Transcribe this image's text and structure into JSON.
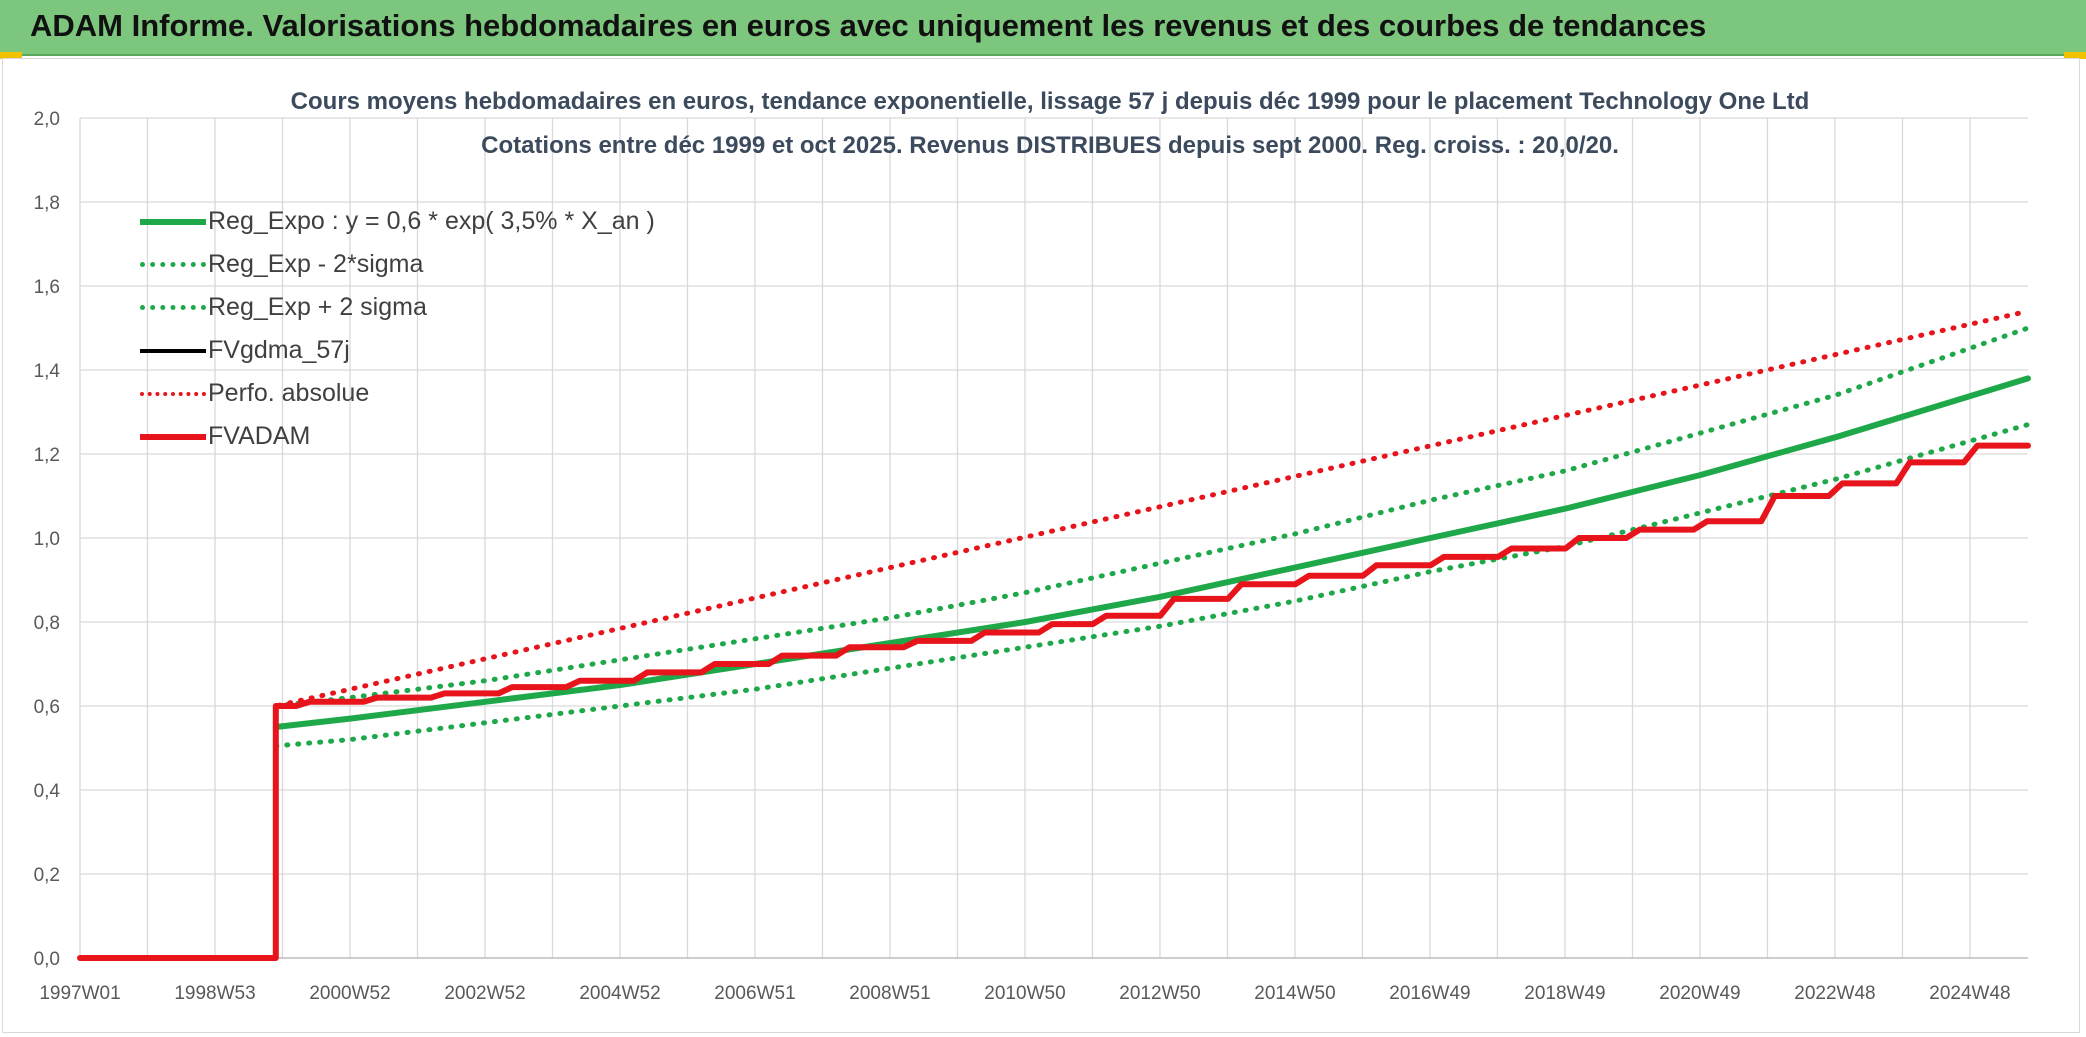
{
  "banner": {
    "title": "ADAM Informe. Valorisations hebdomadaires en euros avec uniquement les revenus et des courbes de tendances",
    "color": "#7dc67d"
  },
  "chart_data": {
    "type": "line",
    "title": "Cours moyens hebdomadaires en euros, tendance exponentielle, lissage 57 j depuis déc 1999 pour le placement Technology One Ltd",
    "subtitle": "Cotations entre déc 1999 et oct 2025. Revenus DISTRIBUES depuis sept 2000. Reg. croiss. : 20,0/20.",
    "xlabel": "",
    "ylabel": "",
    "x_tick_labels": [
      "1997W01",
      "1998W53",
      "2000W52",
      "2002W52",
      "2004W52",
      "2006W51",
      "2008W51",
      "2010W50",
      "2012W50",
      "2014W50",
      "2016W49",
      "2018W49",
      "2020W49",
      "2022W48",
      "2024W48"
    ],
    "y_tick_labels": [
      "0,0",
      "0,2",
      "0,4",
      "0,6",
      "0,8",
      "1,0",
      "1,2",
      "1,4",
      "1,6",
      "1,8",
      "2,0"
    ],
    "xlim": [
      1997.0,
      2025.85
    ],
    "ylim": [
      0,
      2.0
    ],
    "grid": true,
    "legend_position": "top-left",
    "series": [
      {
        "name": "Reg_Expo : y = 0,6 * exp( 3,5% *  X_an )",
        "color": "#1fa84a",
        "style": "solid-thick",
        "x": [
          1999.9,
          2001,
          2003,
          2005,
          2007,
          2009,
          2011,
          2013,
          2015,
          2017,
          2019,
          2021,
          2023,
          2025.85
        ],
        "y": [
          0.55,
          0.57,
          0.61,
          0.65,
          0.7,
          0.75,
          0.8,
          0.86,
          0.93,
          1.0,
          1.07,
          1.15,
          1.24,
          1.38
        ]
      },
      {
        "name": "Reg_Exp - 2*sigma",
        "color": "#1fa84a",
        "style": "dotted",
        "x": [
          1999.9,
          2001,
          2003,
          2005,
          2007,
          2009,
          2011,
          2013,
          2015,
          2017,
          2019,
          2021,
          2023,
          2025.85
        ],
        "y": [
          0.505,
          0.52,
          0.56,
          0.6,
          0.64,
          0.69,
          0.74,
          0.79,
          0.85,
          0.92,
          0.98,
          1.06,
          1.14,
          1.27
        ]
      },
      {
        "name": "Reg_Exp + 2 sigma",
        "color": "#1fa84a",
        "style": "dotted",
        "x": [
          1999.9,
          2001,
          2003,
          2005,
          2007,
          2009,
          2011,
          2013,
          2015,
          2017,
          2019,
          2021,
          2023,
          2025.85
        ],
        "y": [
          0.6,
          0.62,
          0.66,
          0.71,
          0.76,
          0.81,
          0.87,
          0.94,
          1.01,
          1.09,
          1.16,
          1.25,
          1.34,
          1.5
        ]
      },
      {
        "name": "FVgdma_57j",
        "color": "#000000",
        "style": "solid",
        "x": [
          1999.9,
          2000.2,
          2000.4,
          2001.2,
          2001.4,
          2002.2,
          2002.4,
          2003.2,
          2003.4,
          2004.2,
          2004.4,
          2005.2,
          2005.4,
          2006.2,
          2006.4,
          2007.2,
          2007.4,
          2008.2,
          2008.4,
          2009.2,
          2009.4,
          2010.2,
          2010.4,
          2011.2,
          2011.4,
          2012.0,
          2012.2,
          2013.0,
          2013.2,
          2014.0,
          2014.2,
          2015.0,
          2015.2,
          2016.0,
          2016.2,
          2017.0,
          2017.2,
          2018.0,
          2018.2,
          2019.0,
          2019.2,
          2019.9,
          2020.1,
          2020.9,
          2021.1,
          2021.9,
          2022.1,
          2022.9,
          2023.1,
          2023.9,
          2024.1,
          2024.9,
          2025.1,
          2025.85
        ],
        "y": [
          0.6,
          0.6,
          0.61,
          0.61,
          0.62,
          0.62,
          0.63,
          0.63,
          0.645,
          0.645,
          0.66,
          0.66,
          0.68,
          0.68,
          0.7,
          0.7,
          0.72,
          0.72,
          0.74,
          0.74,
          0.755,
          0.755,
          0.775,
          0.775,
          0.795,
          0.795,
          0.815,
          0.815,
          0.855,
          0.855,
          0.89,
          0.89,
          0.91,
          0.91,
          0.935,
          0.935,
          0.955,
          0.955,
          0.975,
          0.975,
          1.0,
          1.0,
          1.02,
          1.02,
          1.04,
          1.04,
          1.1,
          1.1,
          1.13,
          1.13,
          1.18,
          1.18,
          1.22,
          1.22
        ]
      },
      {
        "name": "Perfo. absolue",
        "color": "#e8141b",
        "style": "dotted",
        "x": [
          1997.0,
          1999.9,
          1999.9,
          2025.85
        ],
        "y": [
          0.0,
          0.0,
          0.6,
          1.54
        ]
      },
      {
        "name": "FVADAM",
        "color": "#e8141b",
        "style": "solid-thick",
        "x": [
          1997.0,
          1999.9,
          1999.9,
          2000.2,
          2000.4,
          2001.2,
          2001.4,
          2002.2,
          2002.4,
          2003.2,
          2003.4,
          2004.2,
          2004.4,
          2005.2,
          2005.4,
          2006.2,
          2006.4,
          2007.2,
          2007.4,
          2008.2,
          2008.4,
          2009.2,
          2009.4,
          2010.2,
          2010.4,
          2011.2,
          2011.4,
          2012.0,
          2012.2,
          2013.0,
          2013.2,
          2014.0,
          2014.2,
          2015.0,
          2015.2,
          2016.0,
          2016.2,
          2017.0,
          2017.2,
          2018.0,
          2018.2,
          2019.0,
          2019.2,
          2019.9,
          2020.1,
          2020.9,
          2021.1,
          2021.9,
          2022.1,
          2022.9,
          2023.1,
          2023.9,
          2024.1,
          2024.9,
          2025.1,
          2025.85
        ],
        "y": [
          0.0,
          0.0,
          0.6,
          0.6,
          0.61,
          0.61,
          0.62,
          0.62,
          0.63,
          0.63,
          0.645,
          0.645,
          0.66,
          0.66,
          0.68,
          0.68,
          0.7,
          0.7,
          0.72,
          0.72,
          0.74,
          0.74,
          0.755,
          0.755,
          0.775,
          0.775,
          0.795,
          0.795,
          0.815,
          0.815,
          0.855,
          0.855,
          0.89,
          0.89,
          0.91,
          0.91,
          0.935,
          0.935,
          0.955,
          0.955,
          0.975,
          0.975,
          1.0,
          1.0,
          1.02,
          1.02,
          1.04,
          1.04,
          1.1,
          1.1,
          1.13,
          1.13,
          1.18,
          1.18,
          1.22,
          1.22
        ]
      }
    ]
  }
}
